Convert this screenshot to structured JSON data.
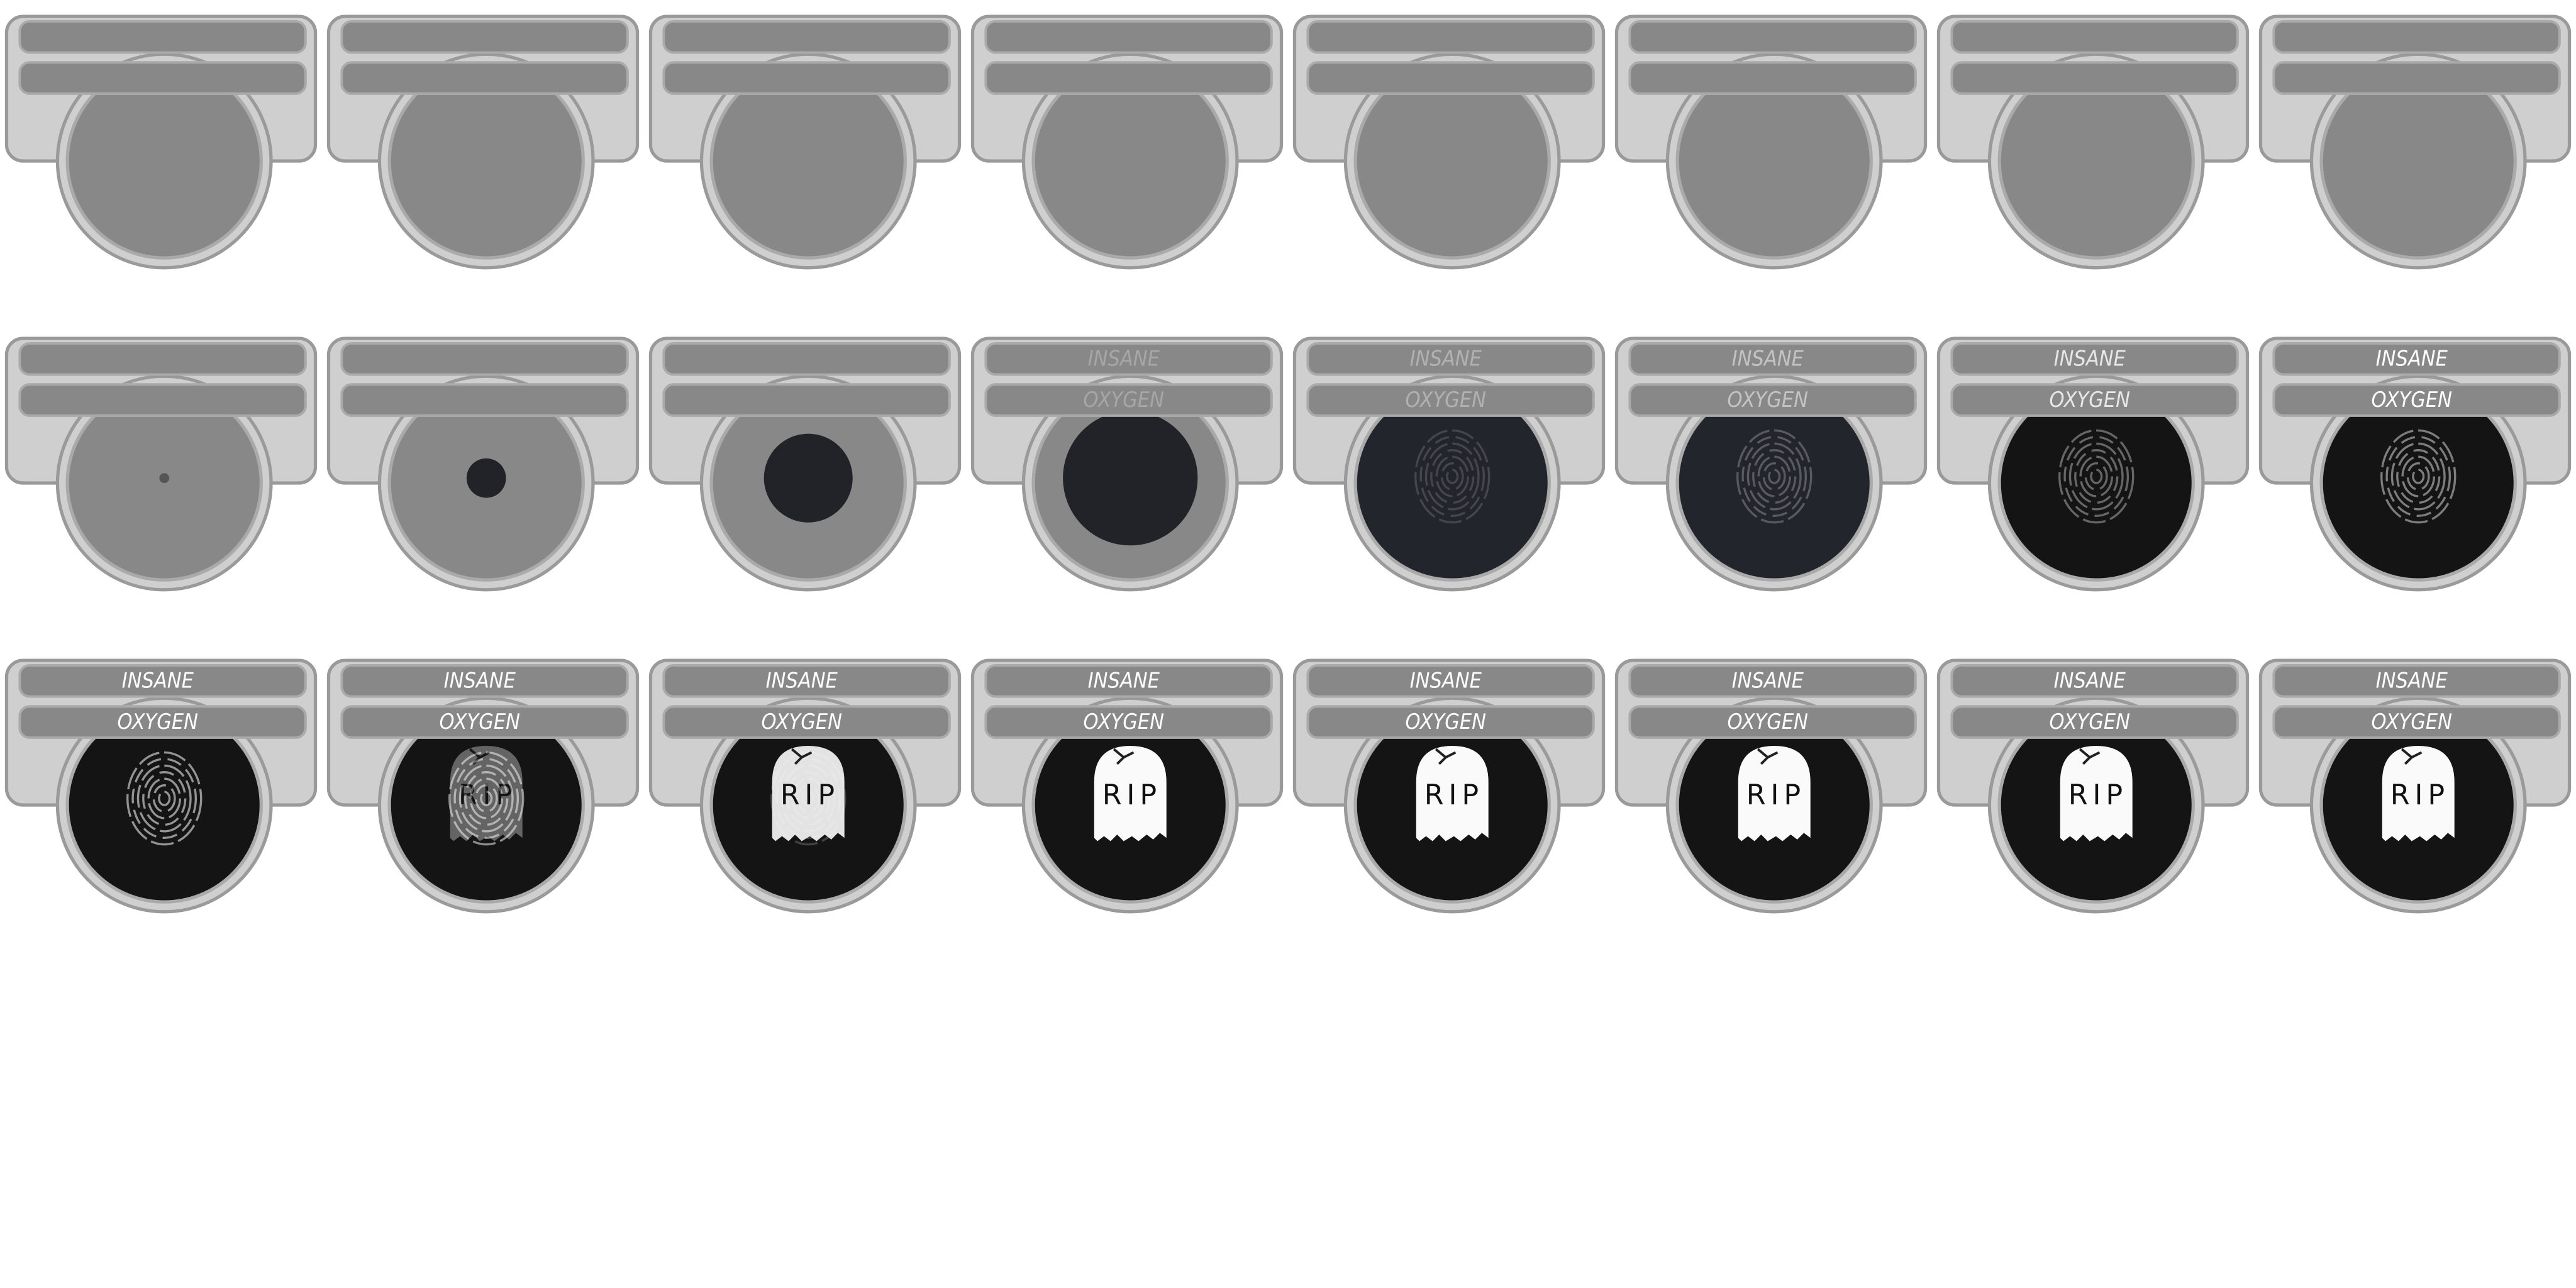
{
  "frames": [
    {},
    {},
    {},
    {},
    {},
    {},
    {},
    {},
    {},
    {},
    {},
    {
      "top": "INSANE",
      "bottom": "OXYGEN"
    },
    {
      "top": "INSANE",
      "bottom": "OXYGEN"
    },
    {
      "top": "INSANE",
      "bottom": "OXYGEN"
    },
    {
      "top": "INSANE",
      "bottom": "OXYGEN"
    },
    {
      "top": "INSANE",
      "bottom": "OXYGEN"
    },
    {
      "top": "INSANE",
      "bottom": "OXYGEN"
    },
    {
      "top": "INSANE",
      "bottom": "OXYGEN",
      "stone": "RIP"
    },
    {
      "top": "INSANE",
      "bottom": "OXYGEN",
      "stone": "RIP"
    },
    {
      "top": "INSANE",
      "bottom": "OXYGEN",
      "stone": "RIP"
    },
    {
      "top": "INSANE",
      "bottom": "OXYGEN",
      "stone": "RIP"
    },
    {
      "top": "INSANE",
      "bottom": "OXYGEN",
      "stone": "RIP"
    },
    {
      "top": "INSANE",
      "bottom": "OXYGEN",
      "stone": "RIP"
    },
    {
      "top": "INSANE",
      "bottom": "OXYGEN",
      "stone": "RIP"
    }
  ]
}
